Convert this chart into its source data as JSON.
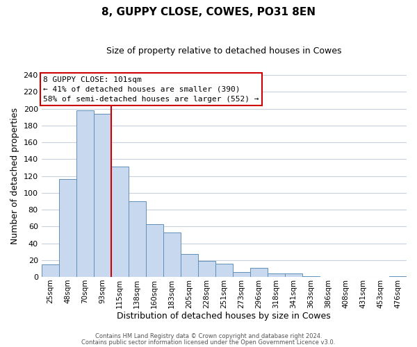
{
  "title": "8, GUPPY CLOSE, COWES, PO31 8EN",
  "subtitle": "Size of property relative to detached houses in Cowes",
  "xlabel": "Distribution of detached houses by size in Cowes",
  "ylabel": "Number of detached properties",
  "bar_labels": [
    "25sqm",
    "48sqm",
    "70sqm",
    "93sqm",
    "115sqm",
    "138sqm",
    "160sqm",
    "183sqm",
    "205sqm",
    "228sqm",
    "251sqm",
    "273sqm",
    "296sqm",
    "318sqm",
    "341sqm",
    "363sqm",
    "386sqm",
    "408sqm",
    "431sqm",
    "453sqm",
    "476sqm"
  ],
  "bar_values": [
    15,
    116,
    198,
    194,
    131,
    90,
    63,
    53,
    27,
    19,
    16,
    6,
    11,
    4,
    4,
    1,
    0,
    0,
    0,
    0,
    1
  ],
  "bar_color": "#c8d8ee",
  "bar_edge_color": "#6090b8",
  "ylim": [
    0,
    240
  ],
  "yticks": [
    0,
    20,
    40,
    60,
    80,
    100,
    120,
    140,
    160,
    180,
    200,
    220,
    240
  ],
  "vline_x_idx": 3,
  "vline_color": "#cc0000",
  "annotation_title": "8 GUPPY CLOSE: 101sqm",
  "annotation_line1": "← 41% of detached houses are smaller (390)",
  "annotation_line2": "58% of semi-detached houses are larger (552) →",
  "footer_line1": "Contains HM Land Registry data © Crown copyright and database right 2024.",
  "footer_line2": "Contains public sector information licensed under the Open Government Licence v3.0.",
  "background_color": "#ffffff",
  "grid_color": "#c8d0dc"
}
